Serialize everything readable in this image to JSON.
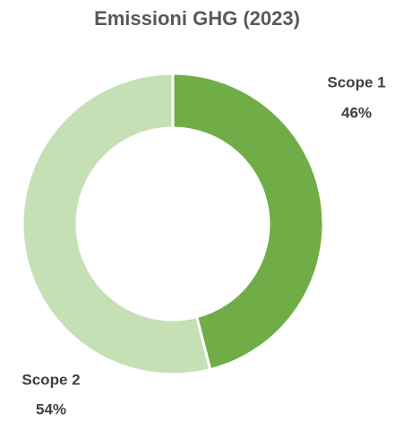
{
  "chart_data": {
    "type": "donut",
    "title": "Emissioni GHG (2023)",
    "categories": [
      "Scope 1",
      "Scope 2"
    ],
    "values": [
      46,
      54
    ],
    "value_labels": [
      "46%",
      "54%"
    ],
    "colors": [
      "#70ad47",
      "#c5e0b4"
    ]
  }
}
